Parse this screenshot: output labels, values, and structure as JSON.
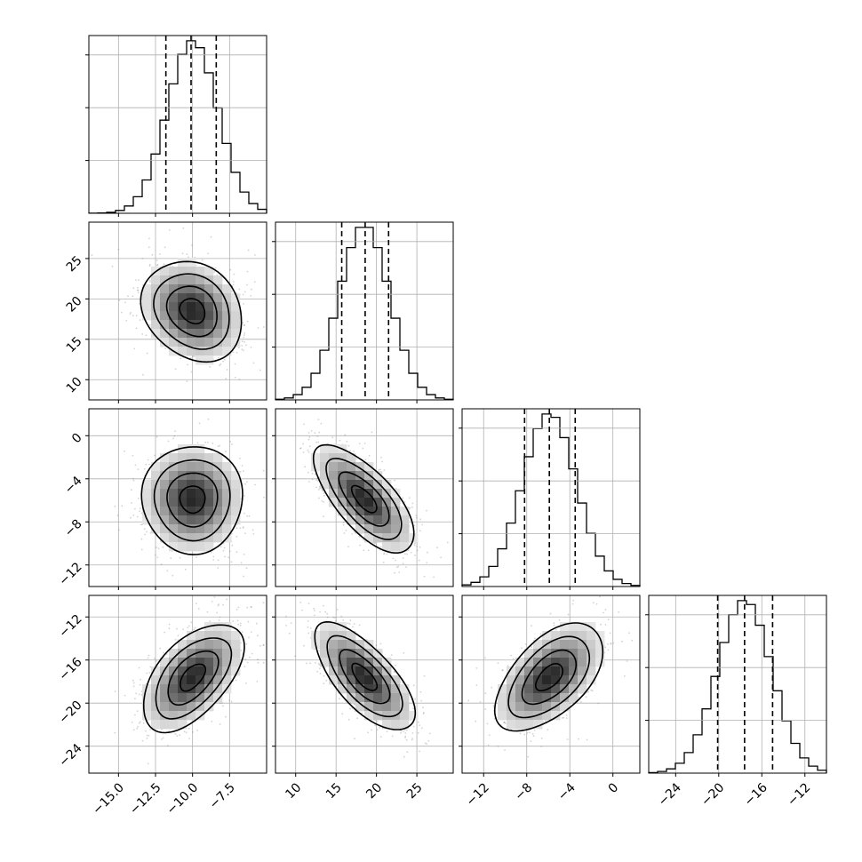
{
  "chart_data": {
    "type": "corner",
    "grid": true,
    "params": [
      {
        "mean": -10.0,
        "std": 1.7,
        "range": [
          -17.0,
          -5.0
        ],
        "ticks": [
          -15.0,
          -12.5,
          -10.0,
          -7.5
        ],
        "tick_labels": [
          "−15.0",
          "−12.5",
          "−10.0",
          "−7.5"
        ],
        "quantiles": [
          -11.8,
          -10.1,
          -8.4
        ]
      },
      {
        "mean": 18.5,
        "std": 3.1,
        "range": [
          7.5,
          29.5
        ],
        "ticks": [
          10,
          15,
          20,
          25
        ],
        "tick_labels": [
          "10",
          "15",
          "20",
          "25"
        ],
        "quantiles": [
          15.7,
          18.6,
          21.5
        ]
      },
      {
        "mean": -5.9,
        "std": 2.5,
        "range": [
          -14.0,
          2.5
        ],
        "ticks": [
          -12,
          -8,
          -4,
          0
        ],
        "tick_labels": [
          "−12",
          "−8",
          "−4",
          "0"
        ],
        "quantiles": [
          -8.2,
          -5.9,
          -3.5
        ]
      },
      {
        "mean": -17.6,
        "std": 2.5,
        "range": [
          -26.5,
          -10.0
        ],
        "ticks": [
          -24,
          -20,
          -16,
          -12
        ],
        "tick_labels": [
          "−24",
          "−20",
          "−16",
          "−12"
        ],
        "quantiles": [
          -20.1,
          -17.6,
          -15.0
        ]
      }
    ],
    "correlations": [
      [
        1.0,
        -0.2,
        0.0,
        0.55
      ],
      [
        -0.2,
        1.0,
        -0.7,
        -0.7
      ],
      [
        0.0,
        -0.7,
        1.0,
        0.55
      ],
      [
        0.55,
        -0.7,
        0.55,
        1.0
      ]
    ],
    "histogram_bins": 20,
    "contour_levels_sigma": [
      0.5,
      1.0,
      1.5,
      2.0
    ]
  },
  "colors": {
    "axes": "#000000",
    "grid": "#b0b0b0",
    "points": "#808080",
    "density": "#000000"
  }
}
